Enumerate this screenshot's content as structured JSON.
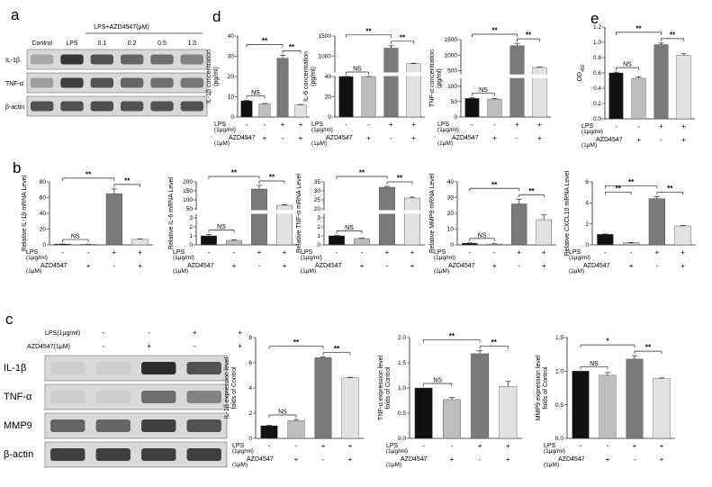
{
  "colors": {
    "black": "#111111",
    "grey": "#bdbdbd",
    "dark": "#7a7a7a",
    "light": "#e2e2e2"
  },
  "panel_labels": {
    "a": "a",
    "b": "b",
    "c": "c",
    "d": "d",
    "e": "e"
  },
  "blot_a": {
    "header_group": "LPS+AZD4547(μM)",
    "lanes": [
      "Control",
      "LPS",
      "0.1",
      "0.2",
      "0.5",
      "1.0"
    ],
    "rows": [
      "IL-1β",
      "TNF-α",
      "β-actin"
    ],
    "row_intensity": [
      [
        0.25,
        0.85,
        0.7,
        0.6,
        0.55,
        0.45
      ],
      [
        0.3,
        0.8,
        0.7,
        0.6,
        0.55,
        0.5
      ],
      [
        0.7,
        0.7,
        0.72,
        0.7,
        0.7,
        0.7
      ]
    ]
  },
  "blot_c": {
    "lps_label": "LPS(1μg/ml)",
    "azd_label": "AZD4547(1μM)",
    "lps_signs": [
      "-",
      "-",
      "+",
      "+"
    ],
    "azd_signs": [
      "-",
      "+",
      "-",
      "+"
    ],
    "rows": [
      "IL-1β",
      "TNF-α",
      "MMP9",
      "β-actin"
    ],
    "row_intensity": [
      [
        0.05,
        0.05,
        0.9,
        0.7
      ],
      [
        0.05,
        0.05,
        0.55,
        0.45
      ],
      [
        0.6,
        0.6,
        0.8,
        0.7
      ],
      [
        0.8,
        0.8,
        0.8,
        0.8
      ]
    ]
  },
  "cond": {
    "lps": "LPS",
    "lps_unit": "(1μg/ml)",
    "azd": "AZD4547",
    "azd_unit": "(1μM)",
    "lps_signs": [
      "-",
      "-",
      "+",
      "+"
    ],
    "azd_signs": [
      "-",
      "+",
      "-",
      "+"
    ]
  },
  "chart_data": [
    {
      "id": "d1",
      "type": "bar",
      "ylabel": "IL-1β concentration (pg/ml)",
      "ylabel_lines": [
        "IL-1β concentration",
        "(pg/ml)"
      ],
      "categories": [
        "Control",
        "AZD4547",
        "LPS",
        "LPS+AZD4547"
      ],
      "values": [
        8,
        6.5,
        29,
        6
      ],
      "errors": [
        0.2,
        0.2,
        1.5,
        0.2
      ],
      "ylim": [
        0,
        40
      ],
      "ticks": [
        "0",
        "10",
        "20",
        "30",
        "40"
      ],
      "tick_values": [
        0,
        10,
        20,
        30,
        40
      ],
      "sig": [
        {
          "label": "NS",
          "from": 0,
          "to": 1
        },
        {
          "label": "**",
          "from": 0,
          "to": 2
        },
        {
          "label": "**",
          "from": 2,
          "to": 3
        }
      ]
    },
    {
      "id": "d2",
      "type": "bar",
      "ylabel": "IL-6 concentration (pg/ml)",
      "ylabel_lines": [
        "IL-6 concentration",
        "(pg/ml)"
      ],
      "categories": [
        "Control",
        "AZD4547",
        "LPS",
        "LPS+AZD4547"
      ],
      "values": [
        40,
        40,
        1200,
        650
      ],
      "errors": [
        1,
        1,
        60,
        20
      ],
      "broken_axis": true,
      "ticks": [
        "0",
        "20",
        "40",
        "1000",
        "1500"
      ],
      "tick_values": [
        0,
        20,
        40,
        1000,
        1500
      ],
      "sig": [
        {
          "label": "NS",
          "from": 0,
          "to": 1
        },
        {
          "label": "**",
          "from": 0,
          "to": 2
        },
        {
          "label": "**",
          "from": 2,
          "to": 3
        }
      ]
    },
    {
      "id": "d3",
      "type": "bar",
      "ylabel": "TNF-α concentration (pg/ml)",
      "ylabel_lines": [
        "TNF-α concentration",
        "(pg/ml)"
      ],
      "categories": [
        "Control",
        "AZD4547",
        "LPS",
        "LPS+AZD4547"
      ],
      "values": [
        60,
        58,
        1300,
        600
      ],
      "errors": [
        2,
        2,
        80,
        15
      ],
      "broken_axis": true,
      "ticks": [
        "0",
        "50",
        "100",
        "500",
        "1000",
        "1500"
      ],
      "tick_values": [
        0,
        50,
        100,
        500,
        1000,
        1500
      ],
      "sig": [
        {
          "label": "NS",
          "from": 0,
          "to": 1
        },
        {
          "label": "**",
          "from": 0,
          "to": 2
        },
        {
          "label": "**",
          "from": 2,
          "to": 3
        }
      ]
    },
    {
      "id": "e1",
      "type": "bar",
      "ylabel": "OD450",
      "ylabel_main": "OD",
      "ylabel_sub": "450",
      "categories": [
        "Control",
        "AZD4547",
        "LPS",
        "LPS+AZD4547"
      ],
      "values": [
        0.6,
        0.53,
        0.97,
        0.83
      ],
      "errors": [
        0.01,
        0.02,
        0.02,
        0.02
      ],
      "ylim": [
        0,
        1.2
      ],
      "ticks": [
        "0.0",
        "0.2",
        "0.4",
        "0.6",
        "0.8",
        "1.0",
        "1.2"
      ],
      "tick_values": [
        0,
        0.2,
        0.4,
        0.6,
        0.8,
        1.0,
        1.2
      ],
      "sig": [
        {
          "label": "NS",
          "from": 0,
          "to": 1
        },
        {
          "label": "**",
          "from": 0,
          "to": 2
        },
        {
          "label": "**",
          "from": 2,
          "to": 3
        }
      ]
    },
    {
      "id": "b1",
      "type": "bar",
      "ylabel": "Relative IL-1β mRNA Level",
      "categories": [
        "Control",
        "AZD4547",
        "LPS",
        "LPS+AZD4547"
      ],
      "values": [
        1,
        0.8,
        65,
        7
      ],
      "errors": [
        0.1,
        0.1,
        6,
        0.5
      ],
      "ylim": [
        0,
        80
      ],
      "ticks": [
        "0",
        "20",
        "40",
        "60",
        "80"
      ],
      "tick_values": [
        0,
        20,
        40,
        60,
        80
      ],
      "sig": [
        {
          "label": "NS",
          "from": 0,
          "to": 1
        },
        {
          "label": "**",
          "from": 0,
          "to": 2
        },
        {
          "label": "**",
          "from": 2,
          "to": 3
        }
      ]
    },
    {
      "id": "b2",
      "type": "bar",
      "ylabel": "Relative IL-6 mRNA Level",
      "categories": [
        "Control",
        "AZD4547",
        "LPS",
        "LPS+AZD4547"
      ],
      "values": [
        1.0,
        0.5,
        160,
        70
      ],
      "errors": [
        0.15,
        0.05,
        20,
        3
      ],
      "broken_axis": true,
      "ticks": [
        "0",
        "1",
        "2",
        "3",
        "50",
        "100",
        "150",
        "200"
      ],
      "tick_values": [
        0,
        1,
        2,
        3,
        50,
        100,
        150,
        200
      ],
      "sig": [
        {
          "label": "NS",
          "from": 0,
          "to": 1
        },
        {
          "label": "**",
          "from": 0,
          "to": 2
        },
        {
          "label": "**",
          "from": 2,
          "to": 3
        }
      ]
    },
    {
      "id": "b3",
      "type": "bar",
      "ylabel": "Relative TNF-α mRNA Level",
      "categories": [
        "Control",
        "AZD4547",
        "LPS",
        "LPS+AZD4547"
      ],
      "values": [
        1.0,
        0.7,
        32,
        26
      ],
      "errors": [
        0.05,
        0.05,
        0.5,
        0.5
      ],
      "broken_axis": true,
      "ticks": [
        "0",
        "1",
        "2",
        "3",
        "20",
        "25",
        "30",
        "35"
      ],
      "tick_values": [
        0,
        1,
        2,
        3,
        20,
        25,
        30,
        35
      ],
      "sig": [
        {
          "label": "NS",
          "from": 0,
          "to": 1
        },
        {
          "label": "**",
          "from": 0,
          "to": 2
        },
        {
          "label": "**",
          "from": 2,
          "to": 3
        }
      ]
    },
    {
      "id": "b4",
      "type": "bar",
      "ylabel": "Relative MMP9 mRNA Level",
      "categories": [
        "Control",
        "AZD4547",
        "LPS",
        "LPS+AZD4547"
      ],
      "values": [
        1,
        0.5,
        26,
        16
      ],
      "errors": [
        0.2,
        0.2,
        3,
        3
      ],
      "ylim": [
        0,
        40
      ],
      "ticks": [
        "0",
        "10",
        "20",
        "30",
        "40"
      ],
      "tick_values": [
        0,
        10,
        20,
        30,
        40
      ],
      "sig": [
        {
          "label": "NS",
          "from": 0,
          "to": 1
        },
        {
          "label": "**",
          "from": 0,
          "to": 2
        },
        {
          "label": "**",
          "from": 2,
          "to": 3
        }
      ]
    },
    {
      "id": "b5",
      "type": "bar",
      "ylabel": "Relative CXCL10 mRNA Level",
      "categories": [
        "Control",
        "AZD4547",
        "LPS",
        "LPS+AZD4547"
      ],
      "values": [
        1,
        0.2,
        4.4,
        1.8
      ],
      "errors": [
        0.03,
        0.03,
        0.2,
        0.05
      ],
      "ylim": [
        0,
        6
      ],
      "ticks": [
        "0",
        "2",
        "4",
        "6"
      ],
      "tick_values": [
        0,
        2,
        4,
        6
      ],
      "sig": [
        {
          "label": "**",
          "from": 0,
          "to": 1
        },
        {
          "label": "**",
          "from": 0,
          "to": 2
        },
        {
          "label": "**",
          "from": 2,
          "to": 3
        }
      ]
    },
    {
      "id": "c1",
      "type": "bar",
      "ylabel": "IL-1β expression level folds of Control",
      "ylabel_lines": [
        "IL-1β expression level",
        "folds of Control"
      ],
      "categories": [
        "Control",
        "AZD4547",
        "LPS",
        "LPS+AZD4547"
      ],
      "values": [
        1,
        1.4,
        6.4,
        4.8
      ],
      "errors": [
        0.03,
        0.1,
        0.05,
        0.05
      ],
      "ylim": [
        0,
        8
      ],
      "ticks": [
        "0",
        "2",
        "4",
        "6",
        "8"
      ],
      "tick_values": [
        0,
        2,
        4,
        6,
        8
      ],
      "sig": [
        {
          "label": "NS",
          "from": 0,
          "to": 1
        },
        {
          "label": "**",
          "from": 0,
          "to": 2
        },
        {
          "label": "**",
          "from": 2,
          "to": 3
        }
      ]
    },
    {
      "id": "c2",
      "type": "bar",
      "ylabel": "TNF-α expression level folds of Control",
      "ylabel_lines": [
        "TNF-α expression level",
        "folds of Control"
      ],
      "categories": [
        "Control",
        "AZD4547",
        "LPS",
        "LPS+AZD4547"
      ],
      "values": [
        1.0,
        0.77,
        1.68,
        1.03
      ],
      "errors": [
        0.0,
        0.04,
        0.06,
        0.1
      ],
      "ylim": [
        0,
        2.0
      ],
      "ticks": [
        "0.0",
        "0.5",
        "1.0",
        "1.5",
        "2.0"
      ],
      "tick_values": [
        0,
        0.5,
        1.0,
        1.5,
        2.0
      ],
      "sig": [
        {
          "label": "NS",
          "from": 0,
          "to": 1
        },
        {
          "label": "**",
          "from": 0,
          "to": 2
        },
        {
          "label": "**",
          "from": 2,
          "to": 3
        }
      ]
    },
    {
      "id": "c3",
      "type": "bar",
      "ylabel": "MMP9 expression level folds of Control",
      "ylabel_lines": [
        "MMP9 expression level",
        "folds of Control"
      ],
      "categories": [
        "Control",
        "AZD4547",
        "LPS",
        "LPS+AZD4547"
      ],
      "values": [
        1.0,
        0.94,
        1.18,
        0.89
      ],
      "errors": [
        0.0,
        0.04,
        0.05,
        0.01
      ],
      "ylim": [
        0,
        1.5
      ],
      "ticks": [
        "0.0",
        "0.5",
        "1.0",
        "1.5"
      ],
      "tick_values": [
        0,
        0.5,
        1.0,
        1.5
      ],
      "sig": [
        {
          "label": "*",
          "from": 0,
          "to": 2
        },
        {
          "label": "**",
          "from": 2,
          "to": 3
        },
        {
          "label": "NS",
          "from": 0,
          "to": 1
        }
      ]
    }
  ]
}
